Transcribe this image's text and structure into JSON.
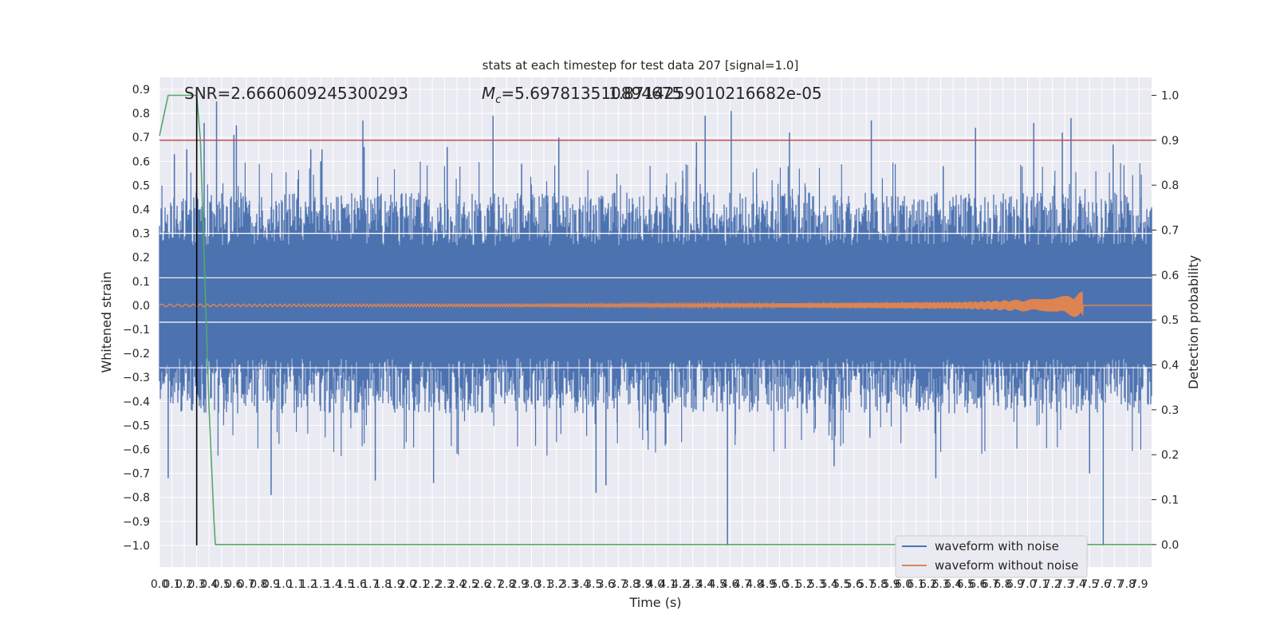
{
  "chart_data": {
    "type": "line",
    "title": "stats at each timestep for test data 207 [signal=1.0]",
    "xlabel": "Time (s)",
    "ylabel_left": "Whitened strain",
    "ylabel_right": "Detection probability",
    "xlim": [
      0.0,
      8.0
    ],
    "ylim_left": [
      -1.09,
      0.95
    ],
    "ylim_right": [
      -0.05,
      1.04
    ],
    "grid": true,
    "x_ticks": [
      "0.0",
      "0.1",
      "0.2",
      "0.3",
      "0.4",
      "0.5",
      "0.6",
      "0.7",
      "0.8",
      "0.9",
      "1.0",
      "1.1",
      "1.2",
      "1.3",
      "1.4",
      "1.5",
      "1.6",
      "1.7",
      "1.8",
      "1.9",
      "2.0",
      "2.1",
      "2.2",
      "2.3",
      "2.4",
      "2.5",
      "2.6",
      "2.7",
      "2.8",
      "2.9",
      "3.0",
      "3.1",
      "3.2",
      "3.3",
      "3.4",
      "3.5",
      "3.6",
      "3.7",
      "3.8",
      "3.9",
      "4.0",
      "4.1",
      "4.2",
      "4.3",
      "4.4",
      "4.5",
      "4.6",
      "4.7",
      "4.8",
      "4.9",
      "5.0",
      "5.1",
      "5.2",
      "5.3",
      "5.4",
      "5.5",
      "5.6",
      "5.7",
      "5.8",
      "5.9",
      "6.0",
      "6.1",
      "6.2",
      "6.3",
      "6.4",
      "6.5",
      "6.6",
      "6.7",
      "6.8",
      "6.9",
      "7.0",
      "7.1",
      "7.2",
      "7.3",
      "7.4",
      "7.5",
      "7.6",
      "7.7",
      "7.8",
      "7.9"
    ],
    "y_ticks_left": [
      "0.9",
      "0.8",
      "0.7",
      "0.6",
      "0.5",
      "0.4",
      "0.3",
      "0.2",
      "0.1",
      "0.0",
      "−0.1",
      "−0.2",
      "−0.3",
      "−0.4",
      "−0.5",
      "−0.6",
      "−0.7",
      "−0.8",
      "−0.9",
      "−1.0"
    ],
    "y_tick_values_left": [
      0.9,
      0.8,
      0.7,
      0.6,
      0.5,
      0.4,
      0.3,
      0.2,
      0.1,
      0.0,
      -0.1,
      -0.2,
      -0.3,
      -0.4,
      -0.5,
      -0.6,
      -0.7,
      -0.8,
      -0.9,
      -1.0
    ],
    "y_ticks_right": [
      "1.0",
      "0.9",
      "0.8",
      "0.7",
      "0.6",
      "0.5",
      "0.4",
      "0.3",
      "0.2",
      "0.1",
      "0.0"
    ],
    "y_tick_values_right": [
      1.0,
      0.9,
      0.8,
      0.7,
      0.6,
      0.5,
      0.4,
      0.3,
      0.2,
      0.1,
      0.0
    ],
    "annotations": {
      "snr": "SNR=2.6660609245300293",
      "mc_a": "M",
      "mc_sub": "c",
      "mc_b": "=5.697813510894675",
      "mc_overlap": "1.8714259010216682e-05"
    },
    "legend": {
      "placement": "lower-right",
      "entries": [
        {
          "label": "waveform with noise",
          "color": "#4c72b0"
        },
        {
          "label": "waveform without noise",
          "color": "#dd8452"
        }
      ]
    },
    "series": [
      {
        "name": "waveform with noise",
        "axis": "left",
        "color": "#4c72b0",
        "style": "dense noise, |strain| mostly below 0.4, peaks up to 0.85, troughs down to -1.0",
        "peaks": [
          [
            0.12,
            0.63
          ],
          [
            0.22,
            0.65
          ],
          [
            0.36,
            0.76
          ],
          [
            0.46,
            0.85
          ],
          [
            0.6,
            0.71
          ],
          [
            0.62,
            0.75
          ],
          [
            1.22,
            0.65
          ],
          [
            1.3,
            0.6
          ],
          [
            1.31,
            0.65
          ],
          [
            1.64,
            0.77
          ],
          [
            1.65,
            0.66
          ],
          [
            2.32,
            0.66
          ],
          [
            2.69,
            0.79
          ],
          [
            2.92,
            0.59
          ],
          [
            3.22,
            0.7
          ],
          [
            4.33,
            0.68
          ],
          [
            4.4,
            0.79
          ],
          [
            4.61,
            0.81
          ],
          [
            5.08,
            0.72
          ],
          [
            5.74,
            0.77
          ],
          [
            6.32,
            0.58
          ],
          [
            6.58,
            0.74
          ],
          [
            7.05,
            0.76
          ],
          [
            7.28,
            0.72
          ],
          [
            7.35,
            0.78
          ],
          [
            7.69,
            0.67
          ]
        ],
        "troughs": [
          [
            0.07,
            -0.72
          ],
          [
            0.9,
            -0.79
          ],
          [
            1.74,
            -0.73
          ],
          [
            2.21,
            -0.74
          ],
          [
            3.52,
            -0.78
          ],
          [
            3.6,
            -0.75
          ],
          [
            4.58,
            -1.0
          ],
          [
            5.44,
            -0.67
          ],
          [
            6.26,
            -0.72
          ],
          [
            7.5,
            -0.7
          ],
          [
            7.61,
            -1.0
          ]
        ]
      },
      {
        "name": "waveform without noise",
        "axis": "left",
        "color": "#dd8452",
        "style": "chirp: amplitude ~0.005 at t=0 growing to ~0.06 at merger t=7.45, then zero",
        "amplitude_points": [
          [
            0.0,
            0.005
          ],
          [
            3.0,
            0.006
          ],
          [
            5.0,
            0.009
          ],
          [
            6.5,
            0.015
          ],
          [
            7.2,
            0.03
          ],
          [
            7.4,
            0.05
          ],
          [
            7.45,
            0.06
          ],
          [
            7.46,
            0.0
          ],
          [
            8.0,
            0.0
          ]
        ]
      },
      {
        "name": "detection probability",
        "axis": "right",
        "color": "#55a868",
        "x": [
          0.0,
          0.07,
          0.12,
          0.3,
          0.33,
          0.4,
          0.44,
          0.45,
          8.0
        ],
        "values": [
          0.91,
          1.0,
          1.0,
          1.0,
          0.9,
          0.3,
          0.05,
          0.0,
          0.0
        ]
      }
    ],
    "threshold_line": {
      "axis": "right",
      "value": 0.9,
      "color": "#c44e52"
    },
    "marker_line": {
      "x": 0.3,
      "y_range_left": [
        -1.0,
        0.9
      ],
      "color": "#000000"
    }
  }
}
